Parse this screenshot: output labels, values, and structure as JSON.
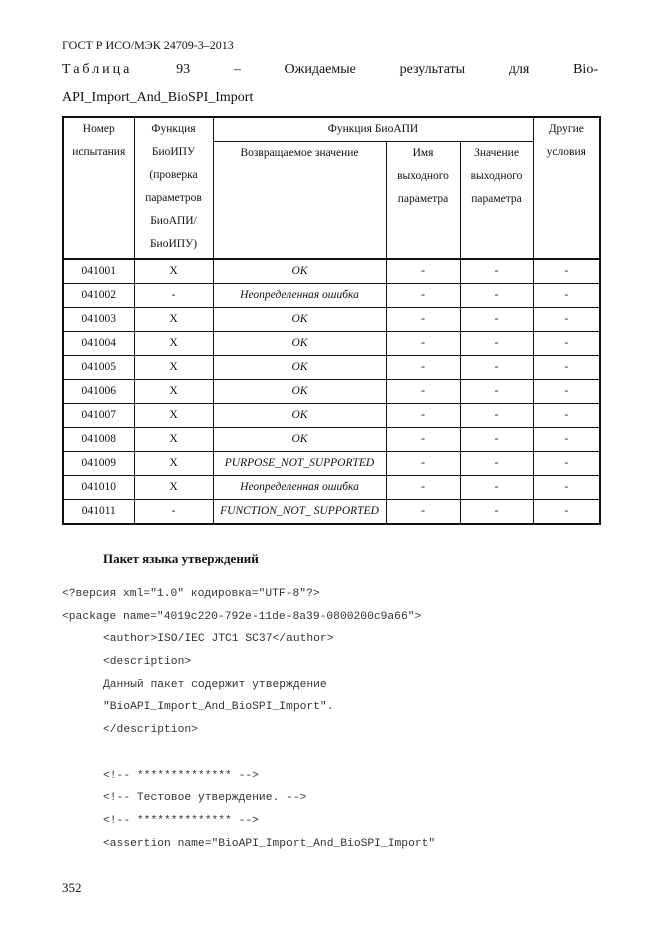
{
  "header": "ГОСТ Р ИСО/МЭК 24709-3–2013",
  "caption": {
    "line1": [
      "Таблица",
      "93",
      "–",
      "Ожидаемые",
      "результаты",
      "для",
      "Bio-"
    ],
    "line2": "API_Import_And_BioSPI_Import"
  },
  "table": {
    "headers": {
      "test_number": "Номер испытания",
      "bioipu_function": "Функция БиоИПУ (проверка параметров БиоАПИ/ БиоИПУ)",
      "bioapi_function": "Функция БиоАПИ",
      "return_value": "Возвращаемое значение",
      "output_param_name": "Имя выходного параметра",
      "output_param_value": "Значение выходного параметра",
      "other_conditions": "Другие условия"
    },
    "rows": [
      [
        "041001",
        "X",
        "OK",
        "-",
        "-",
        "-"
      ],
      [
        "041002",
        "-",
        "Неопределенная ошибка",
        "-",
        "-",
        "-"
      ],
      [
        "041003",
        "X",
        "OK",
        "-",
        "-",
        "-"
      ],
      [
        "041004",
        "X",
        "OK",
        "-",
        "-",
        "-"
      ],
      [
        "041005",
        "X",
        "OK",
        "-",
        "-",
        "-"
      ],
      [
        "041006",
        "X",
        "OK",
        "-",
        "-",
        "-"
      ],
      [
        "041007",
        "X",
        "OK",
        "-",
        "-",
        "-"
      ],
      [
        "041008",
        "X",
        "OK",
        "-",
        "-",
        "-"
      ],
      [
        "041009",
        "X",
        "PURPOSE_NOT_SUPPORTED",
        "-",
        "-",
        "-"
      ],
      [
        "041010",
        "X",
        "Неопределенная ошибка",
        "-",
        "-",
        "-"
      ],
      [
        "041011",
        "-",
        "FUNCTION_NOT_ SUPPORTED",
        "-",
        "-",
        "-"
      ]
    ]
  },
  "section_title": "Пакет языка утверждений",
  "code": [
    {
      "text": "<?версия xml=\"1.0\" кодировка=\"UTF-8\"?>",
      "indent": 0
    },
    {
      "text": "<package name=\"4019c220-792e-11de-8a39-0800200c9a66\">",
      "indent": 0
    },
    {
      "text": "<author>ISO/IEC JTC1 SC37</author>",
      "indent": 1
    },
    {
      "text": "<description>",
      "indent": 1
    },
    {
      "text": "Данный пакет содержит утверждение",
      "indent": 1
    },
    {
      "text": "\"BioAPI_Import_And_BioSPI_Import\".",
      "indent": 1
    },
    {
      "text": "</description>",
      "indent": 1
    },
    {
      "text": "",
      "indent": 1
    },
    {
      "text": "<!-- ************** -->",
      "indent": 1
    },
    {
      "text": "<!-- Тестовое утверждение. -->",
      "indent": 1
    },
    {
      "text": "<!-- ************** -->",
      "indent": 1
    },
    {
      "text": "<assertion name=\"BioAPI_Import_And_BioSPI_Import\"",
      "indent": 1
    }
  ],
  "page_number": "352"
}
